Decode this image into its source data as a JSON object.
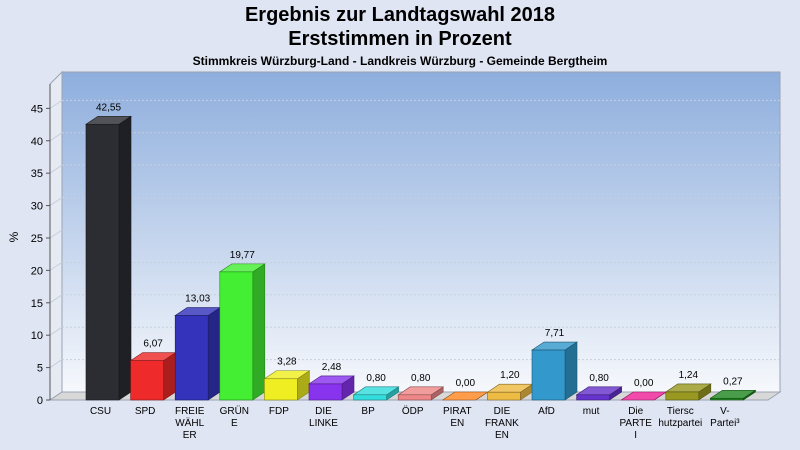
{
  "header": {
    "title": "Ergebnis zur Landtagswahl 2018",
    "subtitle": "Erststimmen in Prozent",
    "subtitle2": "Stimmkreis Würzburg-Land - Landkreis Würzburg - Gemeinde Bergtheim"
  },
  "chart_data": {
    "type": "bar",
    "title": "Ergebnis zur Landtagswahl 2018",
    "subtitle": "Erststimmen in Prozent",
    "ylabel": "%",
    "xlabel": "",
    "ylim": [
      0,
      50
    ],
    "yticks": [
      0,
      5,
      10,
      15,
      20,
      25,
      30,
      35,
      40,
      45
    ],
    "grid": true,
    "categories": [
      "CSU",
      "SPD",
      "FREIE WÄHLER",
      "GRÜNE",
      "FDP",
      "DIE LINKE",
      "BP",
      "ÖDP",
      "PIRATEN",
      "DIE FRANKEN",
      "AfD",
      "mut",
      "Die PARTEI",
      "Tierschutzpartei",
      "V-Partei³"
    ],
    "category_label_lines": [
      [
        "CSU"
      ],
      [
        "SPD"
      ],
      [
        "FREIE",
        "WÄHL",
        "ER"
      ],
      [
        "GRÜN",
        "E"
      ],
      [
        "FDP"
      ],
      [
        "DIE",
        "LINKE"
      ],
      [
        "BP"
      ],
      [
        "ÖDP"
      ],
      [
        "PIRAT",
        "EN"
      ],
      [
        "DIE",
        "FRANK",
        "EN"
      ],
      [
        "AfD"
      ],
      [
        "mut"
      ],
      [
        "Die",
        "PARTE",
        "I"
      ],
      [
        "Tiersc",
        "hutzpartei"
      ],
      [
        "V-",
        "Partei³"
      ]
    ],
    "values": [
      42.55,
      6.07,
      13.03,
      19.77,
      3.28,
      2.48,
      0.8,
      0.8,
      0.0,
      1.2,
      7.71,
      0.8,
      0.0,
      1.24,
      0.27
    ],
    "value_labels": [
      "42,55",
      "6,07",
      "13,03",
      "19,77",
      "3,28",
      "2,48",
      "0,80",
      "0,80",
      "0,00",
      "1,20",
      "7,71",
      "0,80",
      "0,00",
      "1,24",
      "0,27"
    ],
    "colors": [
      "#2b2d33",
      "#ee2a2a",
      "#3333bb",
      "#44ee33",
      "#eeee22",
      "#8833ee",
      "#33dddd",
      "#ee8888",
      "#ff8822",
      "#eebb44",
      "#3399cc",
      "#6633cc",
      "#ee2299",
      "#999922",
      "#228822"
    ]
  }
}
